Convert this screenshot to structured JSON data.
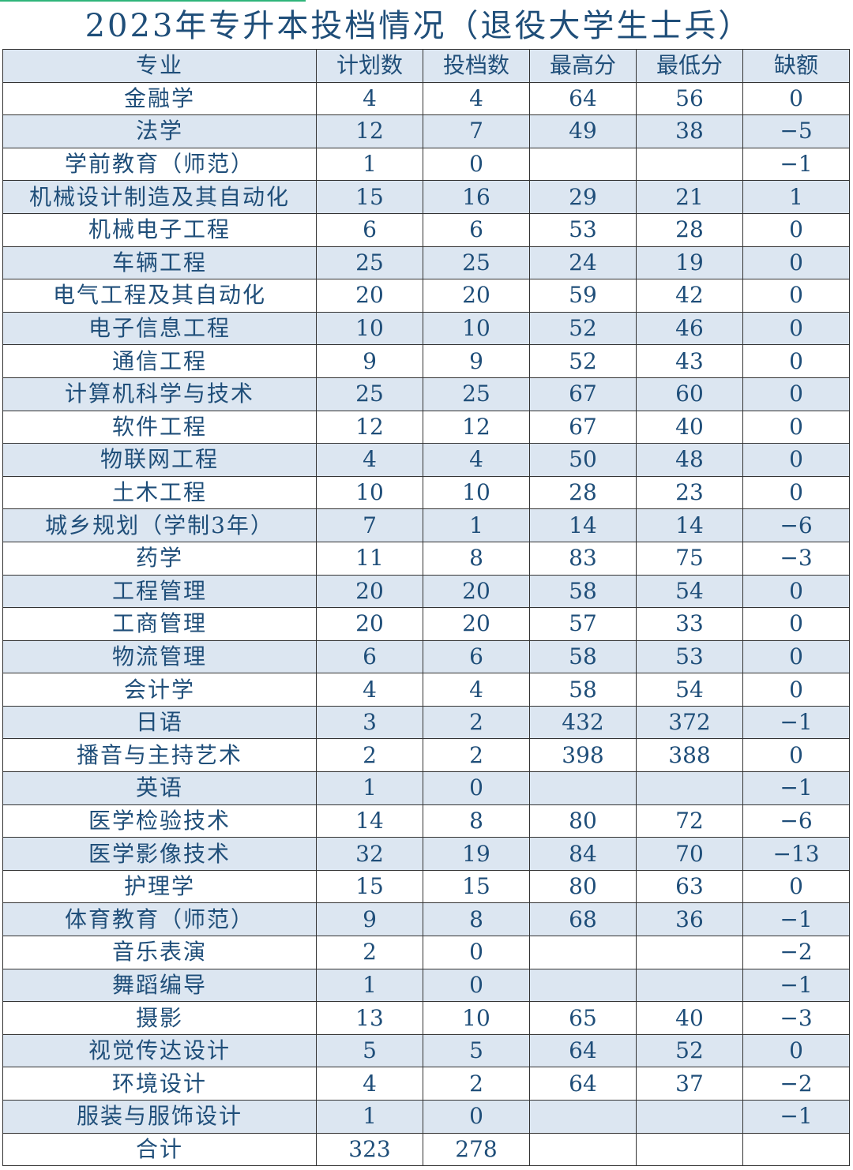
{
  "title": "2023年专升本投档情况（退役大学生士兵）",
  "colors": {
    "text": "#1f4e79",
    "stripe": "#dce6f1",
    "border": "#333333"
  },
  "headers": [
    "专业",
    "计划数",
    "投档数",
    "最高分",
    "最低分",
    "缺额"
  ],
  "rows": [
    [
      "金融学",
      "4",
      "4",
      "64",
      "56",
      "0"
    ],
    [
      "法学",
      "12",
      "7",
      "49",
      "38",
      "−5"
    ],
    [
      "学前教育（师范）",
      "1",
      "0",
      "",
      "",
      "−1"
    ],
    [
      "机械设计制造及其自动化",
      "15",
      "16",
      "29",
      "21",
      "1"
    ],
    [
      "机械电子工程",
      "6",
      "6",
      "53",
      "28",
      "0"
    ],
    [
      "车辆工程",
      "25",
      "25",
      "24",
      "19",
      "0"
    ],
    [
      "电气工程及其自动化",
      "20",
      "20",
      "59",
      "42",
      "0"
    ],
    [
      "电子信息工程",
      "10",
      "10",
      "52",
      "46",
      "0"
    ],
    [
      "通信工程",
      "9",
      "9",
      "52",
      "43",
      "0"
    ],
    [
      "计算机科学与技术",
      "25",
      "25",
      "67",
      "60",
      "0"
    ],
    [
      "软件工程",
      "12",
      "12",
      "67",
      "40",
      "0"
    ],
    [
      "物联网工程",
      "4",
      "4",
      "50",
      "48",
      "0"
    ],
    [
      "土木工程",
      "10",
      "10",
      "28",
      "23",
      "0"
    ],
    [
      "城乡规划（学制3年）",
      "7",
      "1",
      "14",
      "14",
      "−6"
    ],
    [
      "药学",
      "11",
      "8",
      "83",
      "75",
      "−3"
    ],
    [
      "工程管理",
      "20",
      "20",
      "58",
      "54",
      "0"
    ],
    [
      "工商管理",
      "20",
      "20",
      "57",
      "33",
      "0"
    ],
    [
      "物流管理",
      "6",
      "6",
      "58",
      "53",
      "0"
    ],
    [
      "会计学",
      "4",
      "4",
      "58",
      "54",
      "0"
    ],
    [
      "日语",
      "3",
      "2",
      "432",
      "372",
      "−1"
    ],
    [
      "播音与主持艺术",
      "2",
      "2",
      "398",
      "388",
      "0"
    ],
    [
      "英语",
      "1",
      "0",
      "",
      "",
      "−1"
    ],
    [
      "医学检验技术",
      "14",
      "8",
      "80",
      "72",
      "−6"
    ],
    [
      "医学影像技术",
      "32",
      "19",
      "84",
      "70",
      "−13"
    ],
    [
      "护理学",
      "15",
      "15",
      "80",
      "63",
      "0"
    ],
    [
      "体育教育（师范）",
      "9",
      "8",
      "68",
      "36",
      "−1"
    ],
    [
      "音乐表演",
      "2",
      "0",
      "",
      "",
      "−2"
    ],
    [
      "舞蹈编导",
      "1",
      "0",
      "",
      "",
      "−1"
    ],
    [
      "摄影",
      "13",
      "10",
      "65",
      "40",
      "−3"
    ],
    [
      "视觉传达设计",
      "5",
      "5",
      "64",
      "52",
      "0"
    ],
    [
      "环境设计",
      "4",
      "2",
      "64",
      "37",
      "−2"
    ],
    [
      "服装与服饰设计",
      "1",
      "0",
      "",
      "",
      "−1"
    ],
    [
      "合计",
      "323",
      "278",
      "",
      "",
      ""
    ]
  ]
}
